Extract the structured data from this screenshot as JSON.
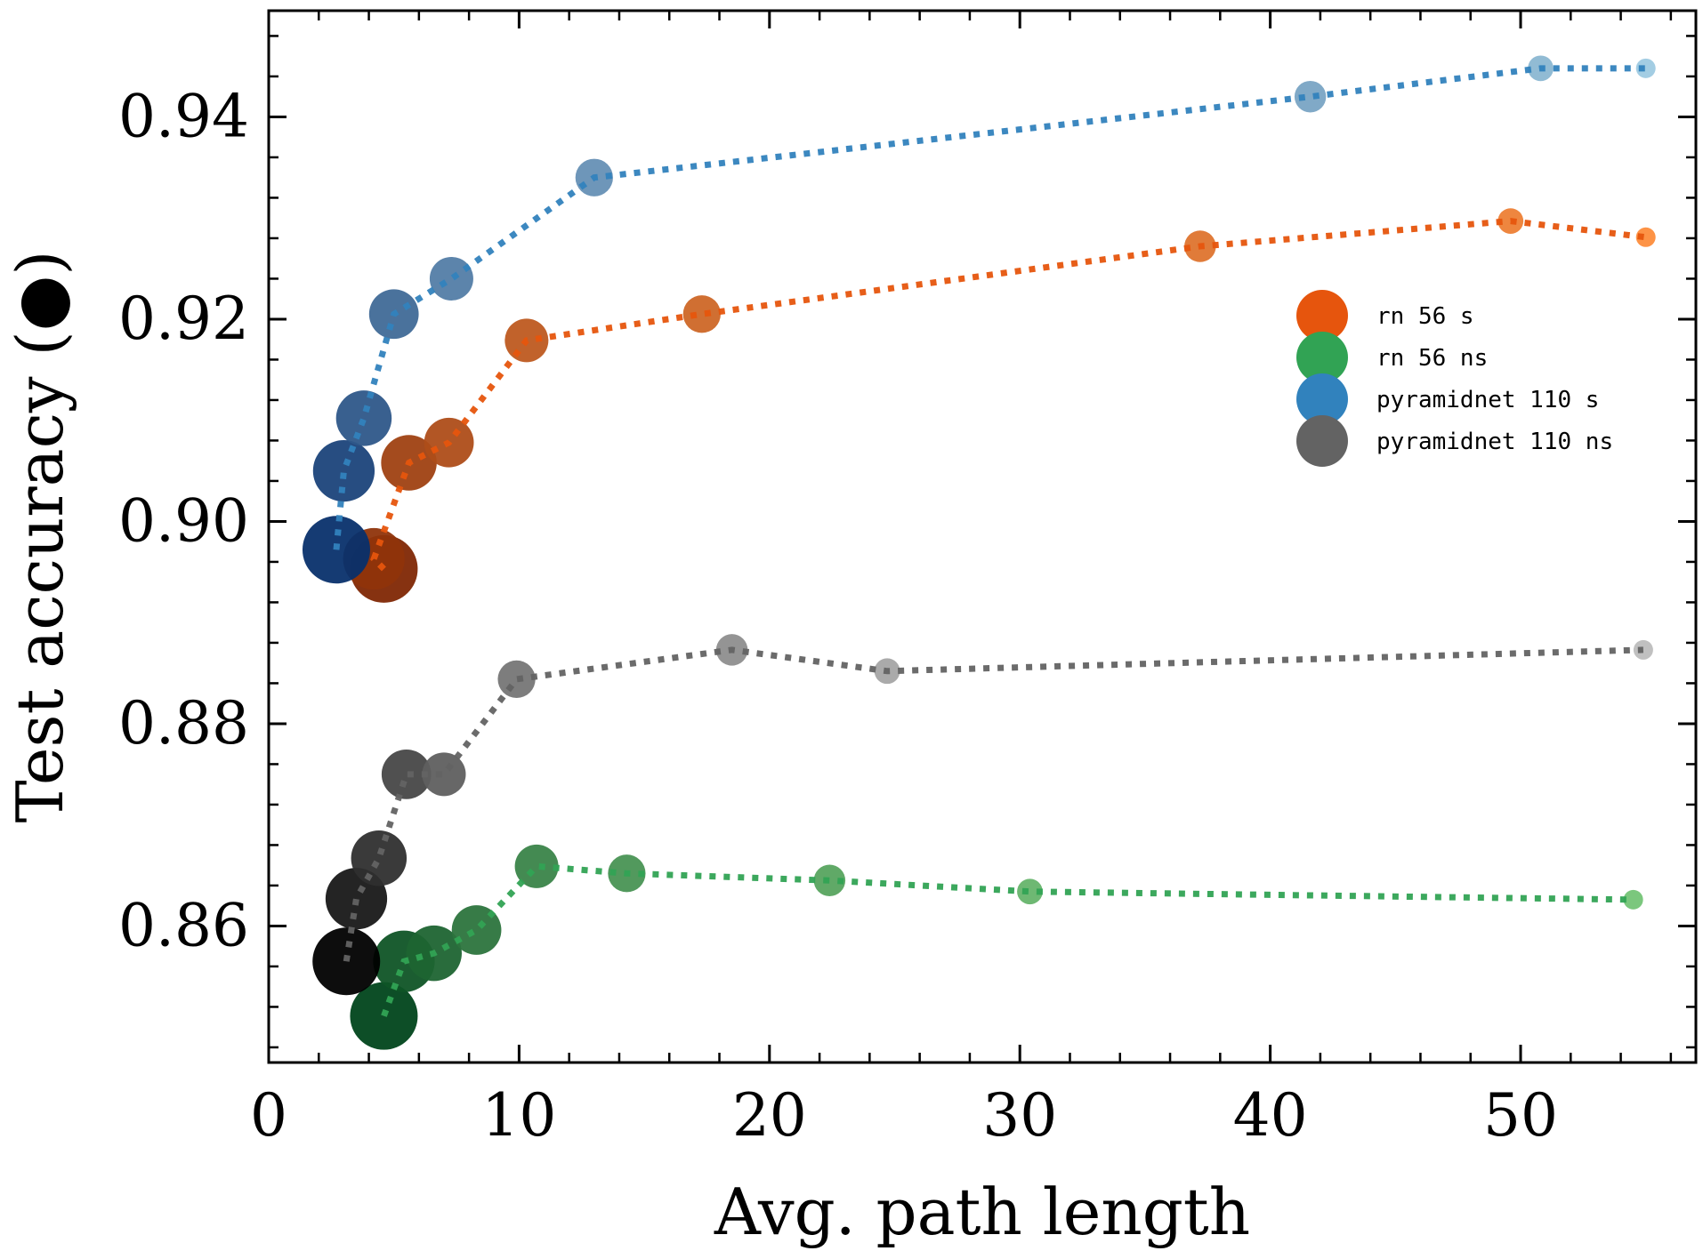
{
  "chart_data": {
    "type": "scatter",
    "title": "",
    "xlabel": "Avg. path length",
    "ylabel": "Test accuracy (●)",
    "xlim": [
      0,
      57
    ],
    "ylim": [
      0.8465,
      0.9505
    ],
    "xticks": [
      0,
      10,
      20,
      30,
      40,
      50
    ],
    "xtick_labels": [
      "0",
      "10",
      "20",
      "30",
      "40",
      "50"
    ],
    "yticks": [
      0.86,
      0.88,
      0.9,
      0.92,
      0.94
    ],
    "ytick_labels": [
      "0.86",
      "0.88",
      "0.90",
      "0.92",
      "0.94"
    ],
    "grid": false,
    "legend_position": "center-right",
    "marker_size_note": "marker size decreases and color lightens along each series",
    "series": [
      {
        "name": "rn 56 s",
        "color": "#e6550d",
        "dark_color": "#7f2704",
        "light_color": "#fd8d3c",
        "x": [
          4.6,
          4.2,
          5.6,
          7.2,
          10.3,
          17.3,
          37.2,
          49.6,
          55.0
        ],
        "y": [
          0.8953,
          0.8963,
          0.9058,
          0.9078,
          0.9179,
          0.9205,
          0.9272,
          0.9297,
          0.9281
        ]
      },
      {
        "name": "rn 56 ns",
        "color": "#31a354",
        "dark_color": "#00441b",
        "light_color": "#74c476",
        "x": [
          4.6,
          5.4,
          6.6,
          8.3,
          10.7,
          14.3,
          22.4,
          30.4,
          54.5
        ],
        "y": [
          0.8511,
          0.8565,
          0.8573,
          0.8596,
          0.8659,
          0.8652,
          0.8645,
          0.8634,
          0.8626
        ]
      },
      {
        "name": "pyramidnet 110 s",
        "color": "#3182bd",
        "dark_color": "#08306b",
        "light_color": "#9ecae1",
        "x": [
          2.7,
          3.0,
          3.8,
          5.0,
          7.3,
          13.0,
          41.6,
          50.8,
          55.0
        ],
        "y": [
          0.8972,
          0.905,
          0.9102,
          0.9205,
          0.924,
          0.934,
          0.942,
          0.9448,
          0.9448
        ]
      },
      {
        "name": "pyramidnet 110 ns",
        "color": "#636363",
        "dark_color": "#000000",
        "light_color": "#bdbdbd",
        "x": [
          3.1,
          3.5,
          4.4,
          5.5,
          7.0,
          9.9,
          18.5,
          24.7,
          54.9
        ],
        "y": [
          0.8565,
          0.8627,
          0.8667,
          0.875,
          0.875,
          0.8844,
          0.8873,
          0.8852,
          0.8873
        ]
      }
    ]
  }
}
